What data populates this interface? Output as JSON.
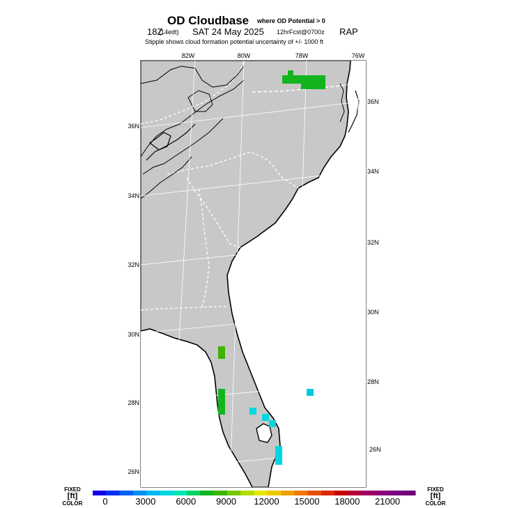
{
  "title": {
    "main": "OD Cloudbase",
    "main_suffix": "where OD Potential > 0",
    "valid": "18Z",
    "valid_local": "(14edt)",
    "date": "SAT 24 May 2025",
    "forecast": "12hrFcst@0700z",
    "model": "RAP",
    "note": "Stipple shows cloud formation potential uncertainty of +/-  1000 ft"
  },
  "map": {
    "lon_labels": [
      "82W",
      "80W",
      "78W",
      "76W"
    ],
    "lat_labels_left": [
      "36N",
      "34N",
      "32N",
      "30N",
      "28N",
      "26N"
    ],
    "lat_labels_right": [
      "36N",
      "34N",
      "32N",
      "30N",
      "28N",
      "26N"
    ],
    "land_color": "#c8c8c8"
  },
  "colorbar": {
    "left_label_top": "FIXED",
    "left_label_mid": "[ft]",
    "left_label_bot": "COLOR",
    "right_label_top": "FIXED",
    "right_label_mid": "[ft]",
    "right_label_bot": "COLOR",
    "tick_labels": [
      "0",
      "3000",
      "6000",
      "9000",
      "12000",
      "15000",
      "18000",
      "21000"
    ],
    "colors": [
      "#1400e6",
      "#0030f0",
      "#0060f0",
      "#0090f0",
      "#00b8f0",
      "#00d8e0",
      "#00e6b4",
      "#00d264",
      "#14b41e",
      "#3cb400",
      "#78c800",
      "#b4dc00",
      "#e6e600",
      "#f0c800",
      "#f0a000",
      "#f07800",
      "#e65000",
      "#dc2800",
      "#c80000",
      "#b4003c",
      "#a00064",
      "#8c0078",
      "#780082",
      "#6e0078"
    ]
  },
  "chart_data": {
    "type": "heatmap",
    "title": "OD Cloudbase",
    "variable": "cloudbase height (ft)",
    "colorbar_range": [
      0,
      23000
    ],
    "cells": [
      {
        "region": "NE North Carolina",
        "value": 8500
      },
      {
        "region": "Central Florida west",
        "value": 8500
      },
      {
        "region": "Central Florida south",
        "value": 8500
      },
      {
        "region": "Atlantic east of Florida",
        "value": 4000
      },
      {
        "region": "South Florida interior",
        "value": 4000
      },
      {
        "region": "Southeast Florida",
        "value": 4000
      }
    ]
  }
}
